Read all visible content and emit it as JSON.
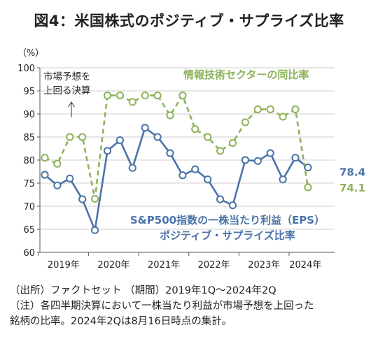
{
  "title": "図4：米国株式のポジティブ・サプライズ比率",
  "chart_data": {
    "type": "line",
    "ylabel": "（%）",
    "ylim": [
      60,
      100
    ],
    "yticks": [
      60,
      65,
      70,
      75,
      80,
      85,
      90,
      95,
      100
    ],
    "x_labels": [
      "2019年",
      "2020年",
      "2021年",
      "2022年",
      "2023年",
      "2024年"
    ],
    "x": [
      "2019Q1",
      "2019Q2",
      "2019Q3",
      "2019Q4",
      "2020Q1",
      "2020Q2",
      "2020Q3",
      "2020Q4",
      "2021Q1",
      "2021Q2",
      "2021Q3",
      "2021Q4",
      "2022Q1",
      "2022Q2",
      "2022Q3",
      "2022Q4",
      "2023Q1",
      "2023Q2",
      "2023Q3",
      "2023Q4",
      "2024Q1",
      "2024Q2"
    ],
    "series": [
      {
        "name": "S&P500指数の一株当たり利益（EPS）ポジティブ・サプライズ比率",
        "color": "#4a73a8",
        "style": "solid",
        "values": [
          76.8,
          74.5,
          76.0,
          71.5,
          64.8,
          82.0,
          84.3,
          78.3,
          87.0,
          85.0,
          81.5,
          76.7,
          78.0,
          75.8,
          71.5,
          70.2,
          80.0,
          79.8,
          81.5,
          75.8,
          80.5,
          78.4
        ],
        "end_label": "78.4"
      },
      {
        "name": "情報技術セクターの同比率",
        "color": "#8db35a",
        "style": "dashed",
        "values": [
          80.5,
          79.2,
          85.0,
          85.0,
          71.6,
          94.0,
          94.0,
          92.6,
          94.0,
          94.0,
          89.7,
          94.0,
          86.7,
          85.0,
          82.0,
          83.7,
          88.2,
          91.0,
          91.0,
          89.4,
          91.0,
          74.1
        ],
        "end_label": "74.1"
      }
    ],
    "annotation": [
      "市場予想を",
      "上回る決算"
    ],
    "label_eps": [
      "S&P500指数の一株当たり利益（EPS）",
      "ポジティブ・サプライズ比率"
    ],
    "label_it": "情報技術セクターの同比率"
  },
  "notes": [
    "（出所）ファクトセット （期間）2019年1Q～2024年2Q",
    "（注）各四半期決算において一株当たり利益が市場予想を上回った",
    "銘柄の比率。2024年2Qは8月16日時点の集計。"
  ]
}
